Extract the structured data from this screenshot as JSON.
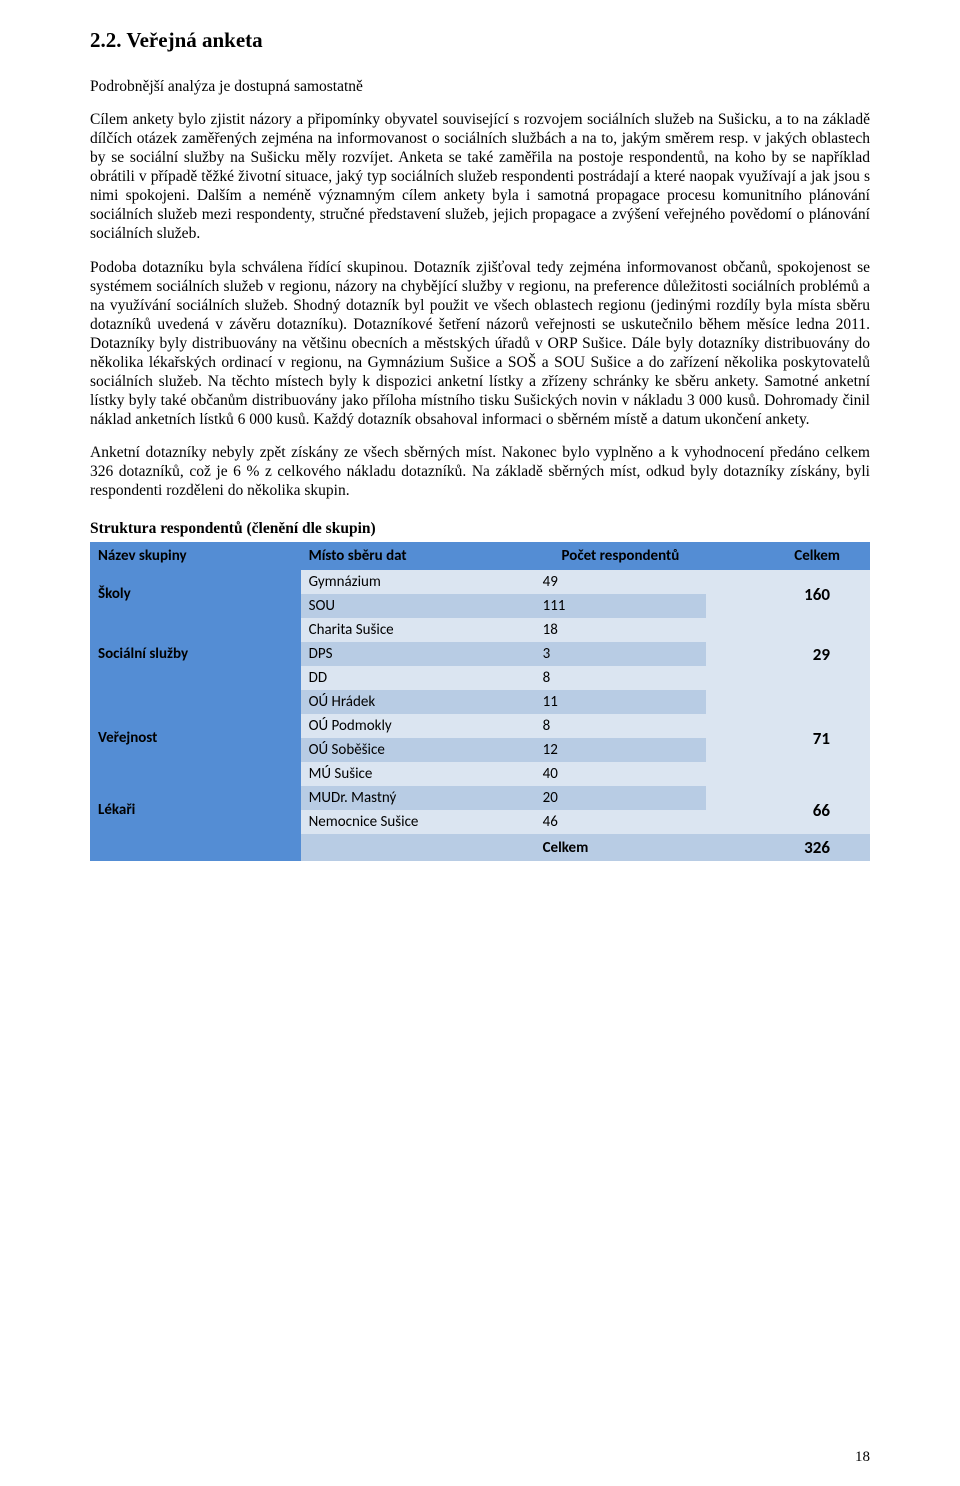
{
  "section": {
    "title": "2.2. Veřejná anketa",
    "intro": "Podrobnější analýza je dostupná samostatně",
    "p1": "Cílem ankety bylo zjistit názory a připomínky obyvatel související s rozvojem sociálních služeb na Sušicku, a to na základě dílčích otázek zaměřených zejména na informovanost o sociálních službách a na to, jakým směrem resp. v jakých oblastech by se sociální služby na Sušicku měly rozvíjet. Anketa se také zaměřila na postoje respondentů, na koho by se například obrátili v případě těžké životní situace, jaký typ sociálních služeb respondenti postrádají a které naopak využívají a jak jsou s nimi spokojeni. Dalším a neméně významným cílem ankety byla i samotná propagace procesu komunitního plánování sociálních služeb mezi respondenty, stručné představení služeb, jejich propagace a zvýšení veřejného povědomí o plánování sociálních služeb.",
    "p2": "Podoba dotazníku byla schválena řídící skupinou. Dotazník zjišťoval tedy zejména informovanost občanů, spokojenost se systémem sociálních služeb v regionu, názory na chybějící služby v regionu, na preference důležitosti sociálních problémů a na využívání sociálních služeb. Shodný dotazník byl použit ve všech oblastech regionu (jedinými rozdíly byla místa sběru dotazníků uvedená v závěru dotazníku). Dotazníkové šetření názorů veřejnosti se uskutečnilo během měsíce ledna 2011. Dotazníky byly distribuovány na většinu obecních a městských úřadů v ORP Sušice. Dále byly dotazníky distribuovány do několika lékařských ordinací v regionu, na Gymnázium Sušice a SOŠ a SOU Sušice a do zařízení několika poskytovatelů sociálních služeb. Na těchto místech byly k dispozici anketní lístky a zřízeny schránky ke sběru ankety. Samotné anketní lístky byly také občanům distribuovány jako příloha místního tisku Sušických novin v nákladu 3 000 kusů. Dohromady činil náklad anketních lístků 6 000 kusů. Každý dotazník obsahoval informaci o sběrném místě a datum ukončení ankety.",
    "p3": "Anketní dotazníky nebyly zpět získány ze všech sběrných míst. Nakonec bylo vyplněno a k vyhodnocení předáno celkem 326 dotazníků, což je 6 % z celkového nákladu dotazníků. Na základě sběrných míst, odkud byly dotazníky získány, byli respondenti rozděleni do několika skupin."
  },
  "table": {
    "title": "Struktura respondentů (členění dle skupin)",
    "columns": [
      "Název skupiny",
      "Místo sběru dat",
      "Počet respondentů",
      "Celkem"
    ],
    "colors": {
      "header_bg": "#548dd4",
      "group_bg": "#548dd4",
      "row_alt_a": "#dbe5f1",
      "row_alt_b": "#b8cce4",
      "totals_bg": "#b8cce4",
      "text": "#000000"
    },
    "groups": [
      {
        "name": "Školy",
        "total": 160,
        "rows": [
          {
            "place": "Gymnázium",
            "count": 49,
            "shade": "a"
          },
          {
            "place": "SOU",
            "count": 111,
            "shade": "b"
          }
        ]
      },
      {
        "name": "Sociální služby",
        "total": 29,
        "rows": [
          {
            "place": "Charita Sušice",
            "count": 18,
            "shade": "a"
          },
          {
            "place": "DPS",
            "count": 3,
            "shade": "b"
          },
          {
            "place": "DD",
            "count": 8,
            "shade": "a"
          }
        ]
      },
      {
        "name": "Veřejnost",
        "total": 71,
        "rows": [
          {
            "place": "OÚ Hrádek",
            "count": 11,
            "shade": "b"
          },
          {
            "place": "OÚ Podmokly",
            "count": 8,
            "shade": "a"
          },
          {
            "place": "OÚ Soběšice",
            "count": 12,
            "shade": "b"
          },
          {
            "place": "MÚ Sušice",
            "count": 40,
            "shade": "a"
          }
        ]
      },
      {
        "name": "Lékaři",
        "total": 66,
        "rows": [
          {
            "place": "MUDr. Mastný",
            "count": 20,
            "shade": "b"
          },
          {
            "place": "Nemocnice Sušice",
            "count": 46,
            "shade": "a"
          }
        ]
      }
    ],
    "totals": {
      "label": "Celkem",
      "value": 326
    }
  },
  "page_number": "18"
}
